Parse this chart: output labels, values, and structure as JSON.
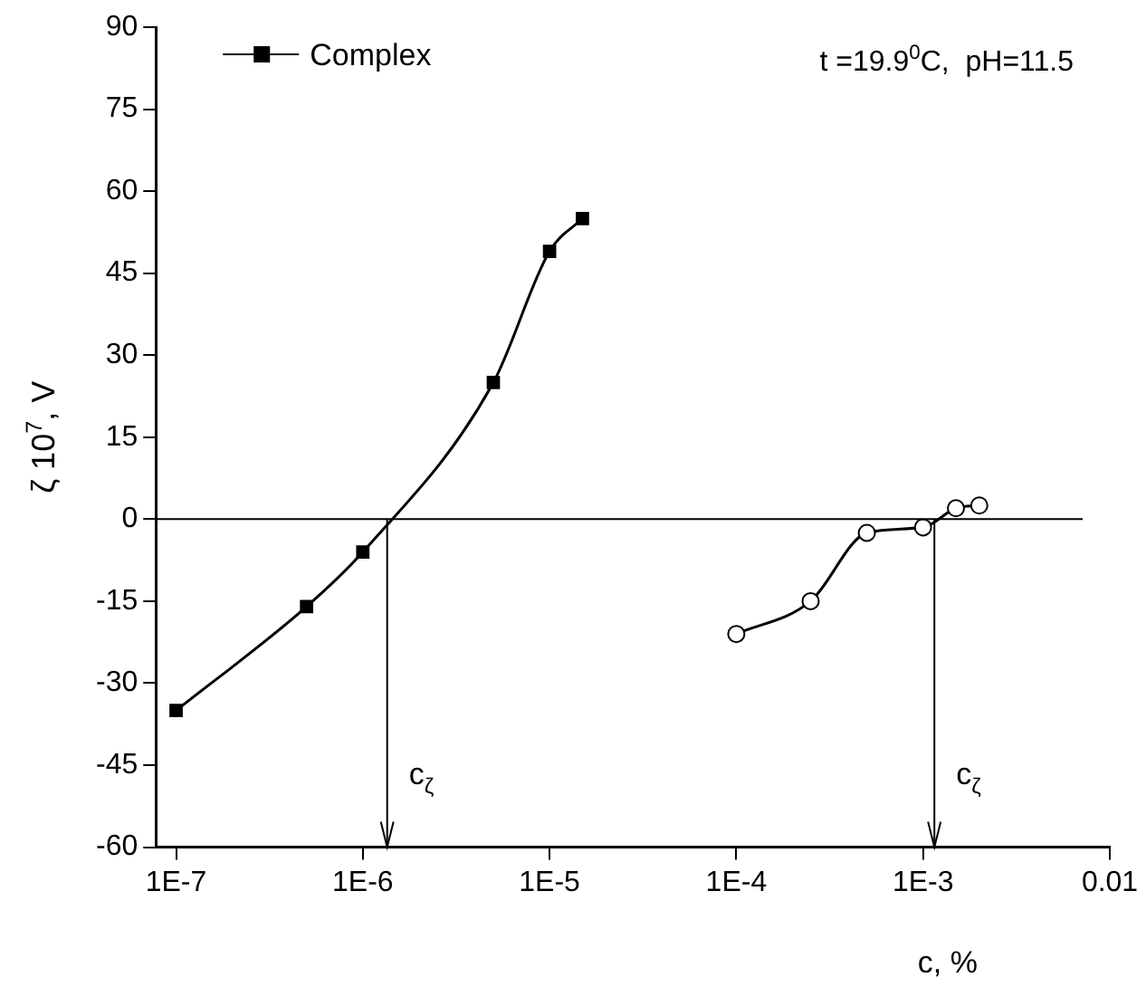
{
  "chart_data": {
    "type": "line",
    "xlabel": "c, %",
    "ylabel": "ζ 10$^{7}$, V",
    "log": "x",
    "grid": false,
    "legend": "top left",
    "line_style": "solid",
    "xlim": [
      7.8e-08,
      0.01
    ],
    "xticks": [
      {
        "value": 1e-07,
        "label": "1E-7"
      },
      {
        "value": 1e-06,
        "label": "1E-6"
      },
      {
        "value": 1e-05,
        "label": "1E-5"
      },
      {
        "value": 0.0001,
        "label": "1E-4"
      },
      {
        "value": 0.001,
        "label": "1E-3"
      },
      0.01
    ],
    "ylim": [
      -60,
      90
    ],
    "yticks": [
      -60,
      -45,
      -30,
      -15,
      0,
      15,
      30,
      45,
      60,
      75,
      90
    ],
    "series": [
      {
        "name": "Complex",
        "color": "#000000",
        "marker": "square",
        "x": [
          1e-07,
          5e-07,
          1e-06,
          5e-06,
          1e-05,
          1.5e-05
        ],
        "values": [
          -35,
          -16,
          -6,
          25,
          49,
          55
        ]
      },
      {
        "color": "#000000",
        "marker": "circle",
        "x": [
          0.0001,
          0.00025,
          0.0005,
          0.001,
          0.0015,
          0.002
        ],
        "values": [
          -21,
          -15,
          -2.5,
          -1.5,
          2,
          2.5
        ]
      }
    ],
    "ref_lines": [
      {
        "axis": "y",
        "value": 0
      },
      {
        "axis": "x",
        "value": 1.35e-06,
        "label": "c$_{ζ}$"
      },
      {
        "axis": "x",
        "value": 0.00115,
        "label": "c$_{ζ}$"
      }
    ],
    "annotations": [
      "t =19.9$^{0}$C,  pH=11.5"
    ]
  }
}
